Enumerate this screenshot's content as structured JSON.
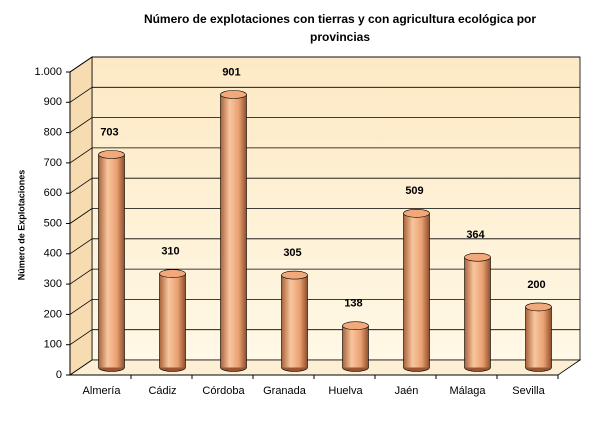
{
  "chart_data": {
    "type": "bar",
    "title": [
      "Número de explotaciones con  tierras y con agricultura ecológica por",
      "provincias"
    ],
    "y_label": "Número de Explotaciones",
    "categories": [
      "Almería",
      "Cádiz",
      "Córdoba",
      "Granada",
      "Huelva",
      "Jaén",
      "Málaga",
      "Sevilla"
    ],
    "values": [
      703,
      310,
      901,
      305,
      138,
      509,
      364,
      200
    ],
    "color": "#f2a878",
    "ylim": [
      0,
      1000
    ],
    "yticks": [
      0,
      100,
      200,
      300,
      400,
      500,
      600,
      700,
      800,
      900,
      {
        "value": 1000,
        "label": "1.000"
      }
    ],
    "grid": true
  }
}
